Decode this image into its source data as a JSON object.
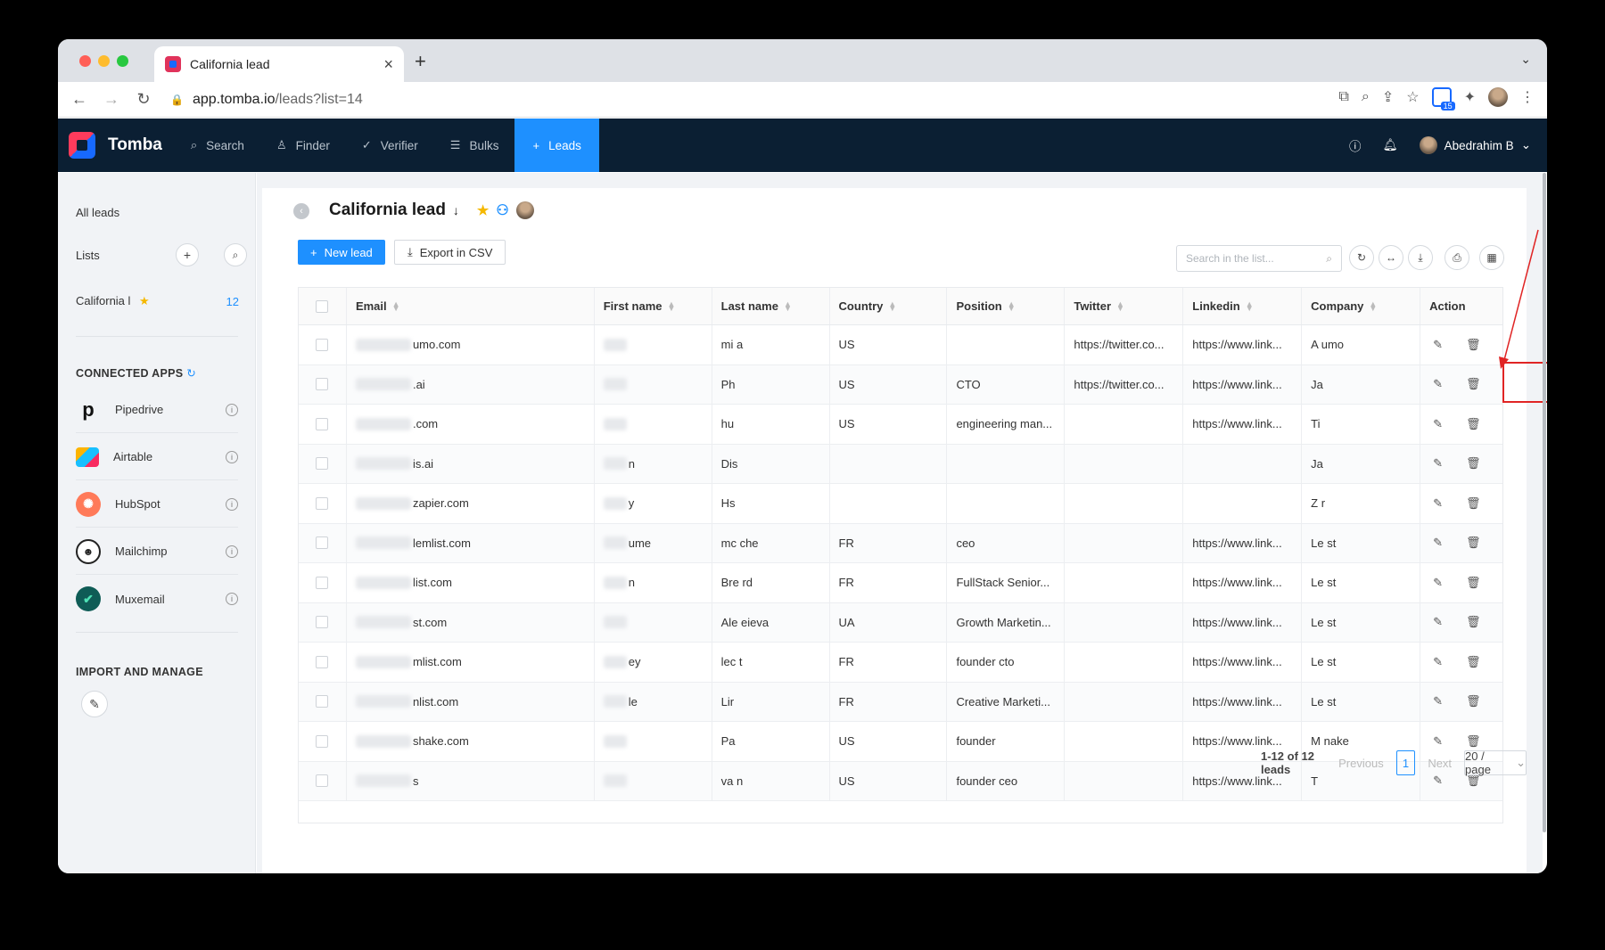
{
  "browser": {
    "tab_title": "California lead",
    "url_host": "app.tomba.io",
    "url_path": "/leads?list=14",
    "ext_badge": "15"
  },
  "nav": {
    "brand": "Tomba",
    "items": [
      {
        "label": "Search",
        "icon": "search-icon"
      },
      {
        "label": "Finder",
        "icon": "user-icon"
      },
      {
        "label": "Verifier",
        "icon": "check-icon"
      },
      {
        "label": "Bulks",
        "icon": "list-icon"
      },
      {
        "label": "Leads",
        "icon": "plus-icon"
      }
    ],
    "user_name": "Abedrahim B"
  },
  "sidebar": {
    "all_leads": "All leads",
    "lists_label": "Lists",
    "list_item": "California l",
    "list_count": "12",
    "connected_title": "CONNECTED APPS",
    "apps": [
      "Pipedrive",
      "Airtable",
      "HubSpot",
      "Mailchimp",
      "Muxemail"
    ],
    "import_title": "IMPORT AND MANAGE"
  },
  "page": {
    "title": "California lead",
    "new_lead": "New lead",
    "export": "Export in CSV",
    "search_placeholder": "Search in the list..."
  },
  "table": {
    "columns": [
      "Email",
      "First name",
      "Last name",
      "Country",
      "Position",
      "Twitter",
      "Linkedin",
      "Company",
      "Action"
    ],
    "rows": [
      {
        "email": "umo.com",
        "first": "",
        "last": "mi a",
        "country": "US",
        "position": "",
        "twitter": "https://twitter.co...",
        "linkedin": "https://www.link...",
        "company": "A umo"
      },
      {
        "email": ".ai",
        "first": "",
        "last": "Ph",
        "country": "US",
        "position": "CTO",
        "twitter": "https://twitter.co...",
        "linkedin": "https://www.link...",
        "company": "Ja"
      },
      {
        "email": ".com",
        "first": "",
        "last": "hu",
        "country": "US",
        "position": "engineering man...",
        "twitter": "",
        "linkedin": "https://www.link...",
        "company": "Ti"
      },
      {
        "email": "is.ai",
        "first": "n",
        "last": "Dis",
        "country": "",
        "position": "",
        "twitter": "",
        "linkedin": "",
        "company": "Ja"
      },
      {
        "email": "zapier.com",
        "first": "y",
        "last": "Hs",
        "country": "",
        "position": "",
        "twitter": "",
        "linkedin": "",
        "company": "Z r"
      },
      {
        "email": "lemlist.com",
        "first": "ume",
        "last": "mc che",
        "country": "FR",
        "position": "ceo",
        "twitter": "",
        "linkedin": "https://www.link...",
        "company": "Le st"
      },
      {
        "email": "list.com",
        "first": "n",
        "last": "Bre rd",
        "country": "FR",
        "position": "FullStack Senior...",
        "twitter": "",
        "linkedin": "https://www.link...",
        "company": "Le st"
      },
      {
        "email": "st.com",
        "first": "",
        "last": "Ale eieva",
        "country": "UA",
        "position": "Growth Marketin...",
        "twitter": "",
        "linkedin": "https://www.link...",
        "company": "Le st"
      },
      {
        "email": "mlist.com",
        "first": "ey",
        "last": "lec t",
        "country": "FR",
        "position": "founder cto",
        "twitter": "",
        "linkedin": "https://www.link...",
        "company": "Le st"
      },
      {
        "email": "nlist.com",
        "first": "le",
        "last": "Lir",
        "country": "FR",
        "position": "Creative Marketi...",
        "twitter": "",
        "linkedin": "https://www.link...",
        "company": "Le st"
      },
      {
        "email": "shake.com",
        "first": "",
        "last": "Pa",
        "country": "US",
        "position": "founder",
        "twitter": "",
        "linkedin": "https://www.link...",
        "company": "M nake"
      },
      {
        "email": "s",
        "first": "",
        "last": "va n",
        "country": "US",
        "position": "founder ceo",
        "twitter": "",
        "linkedin": "https://www.link...",
        "company": "T"
      }
    ]
  },
  "pagination": {
    "total": "1-12 of 12 leads",
    "previous": "Previous",
    "page": "1",
    "next": "Next",
    "page_size": "20 / page"
  }
}
